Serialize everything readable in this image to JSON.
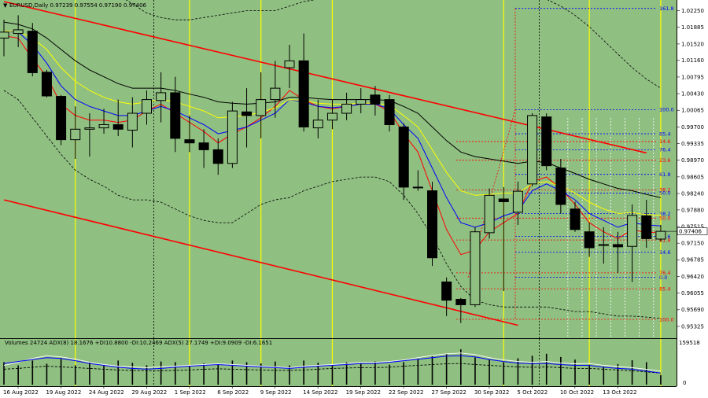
{
  "window": {
    "main_header": "EURUSD,Daily  0.97239 0.97554 0.97190 0.97406",
    "indicator_header": "Volumes 24724  ADX(8) 18.1676 +DI10.8800 -DI:10.2469  ADX(5) 27.1749 +DI:9.0909 -DI:6.1651",
    "current_price_label": "0.97406",
    "volume_axis_top": "159518",
    "volume_axis_bottom": "0"
  },
  "colors": {
    "background": "#8fbf81",
    "bull_candle": "#8fbf81",
    "bear_candle": "#000000",
    "channel": "#ff0000",
    "vertical_markers": "#ffff00",
    "fib_blue": "#0000ff",
    "fib_red": "#ff0000",
    "ma_fast": "#ff0000",
    "ma_mid": "#0000ff",
    "ma_slow": "#ffff00",
    "ma_long": "#000000"
  },
  "chart_data": {
    "type": "candlestick",
    "symbol": "EURUSD",
    "timeframe": "Daily",
    "y_range": [
      0.951,
      1.0245
    ],
    "y_ticks": [
      "1.02250",
      "1.01885",
      "1.01520",
      "1.01160",
      "1.00795",
      "1.00430",
      "1.00065",
      "0.99700",
      "0.99335",
      "0.98970",
      "0.98605",
      "0.98240",
      "0.97880",
      "0.97515",
      "0.97150",
      "0.96785",
      "0.96420",
      "0.96055",
      "0.95690",
      "0.95325"
    ],
    "x_labels": [
      "16 Aug 2022",
      "19 Aug 2022",
      "24 Aug 2022",
      "29 Aug 2022",
      "1 Sep 2022",
      "6 Sep 2022",
      "9 Sep 2022",
      "14 Sep 2022",
      "19 Sep 2022",
      "22 Sep 2022",
      "27 Sep 2022",
      "30 Sep 2022",
      "5 Oct 2022",
      "10 Oct 2022",
      "13 Oct 2022"
    ],
    "candles": [
      {
        "o": 1.0165,
        "h": 1.0205,
        "l": 1.0125,
        "c": 1.0178
      },
      {
        "o": 1.0175,
        "h": 1.0215,
        "l": 1.0145,
        "c": 1.0183
      },
      {
        "o": 1.018,
        "h": 1.0198,
        "l": 1.0081,
        "c": 1.0089
      },
      {
        "o": 1.009,
        "h": 1.0095,
        "l": 1.0035,
        "c": 1.0038
      },
      {
        "o": 1.0037,
        "h": 1.004,
        "l": 0.993,
        "c": 0.9942
      },
      {
        "o": 0.9942,
        "h": 1.0015,
        "l": 0.99,
        "c": 0.9965
      },
      {
        "o": 0.9965,
        "h": 1.0,
        "l": 0.9905,
        "c": 0.9968
      },
      {
        "o": 0.9968,
        "h": 1.001,
        "l": 0.9955,
        "c": 0.9975
      },
      {
        "o": 0.9975,
        "h": 1.003,
        "l": 0.995,
        "c": 0.9965
      },
      {
        "o": 0.9963,
        "h": 1.0035,
        "l": 0.9925,
        "c": 1.0
      },
      {
        "o": 1.0,
        "h": 1.005,
        "l": 0.9975,
        "c": 1.003
      },
      {
        "o": 1.0028,
        "h": 1.009,
        "l": 0.998,
        "c": 1.0045
      },
      {
        "o": 1.0045,
        "h": 1.008,
        "l": 0.9915,
        "c": 0.9945
      },
      {
        "o": 0.9942,
        "h": 0.9995,
        "l": 0.9915,
        "c": 0.9935
      },
      {
        "o": 0.9935,
        "h": 0.9965,
        "l": 0.988,
        "c": 0.992
      },
      {
        "o": 0.992,
        "h": 0.9945,
        "l": 0.9865,
        "c": 0.989
      },
      {
        "o": 0.989,
        "h": 1.0025,
        "l": 0.988,
        "c": 1.0005
      },
      {
        "o": 1.0003,
        "h": 1.0055,
        "l": 0.9925,
        "c": 0.9995
      },
      {
        "o": 0.9995,
        "h": 1.009,
        "l": 0.9945,
        "c": 1.003
      },
      {
        "o": 1.003,
        "h": 1.0115,
        "l": 0.999,
        "c": 1.0055
      },
      {
        "o": 1.01,
        "h": 1.015,
        "l": 1.0055,
        "c": 1.0115
      },
      {
        "o": 1.0115,
        "h": 1.0175,
        "l": 0.996,
        "c": 0.997
      },
      {
        "o": 0.9968,
        "h": 1.003,
        "l": 0.9945,
        "c": 0.9985
      },
      {
        "o": 0.9985,
        "h": 1.003,
        "l": 0.9965,
        "c": 1.0
      },
      {
        "o": 1.0,
        "h": 1.0045,
        "l": 0.9985,
        "c": 1.002
      },
      {
        "o": 1.002,
        "h": 1.0055,
        "l": 1.0,
        "c": 1.003
      },
      {
        "o": 1.004,
        "h": 1.006,
        "l": 0.9995,
        "c": 1.002
      },
      {
        "o": 1.003,
        "h": 1.004,
        "l": 0.996,
        "c": 0.9975
      },
      {
        "o": 0.997,
        "h": 0.9978,
        "l": 0.981,
        "c": 0.9838
      },
      {
        "o": 0.9838,
        "h": 0.9875,
        "l": 0.983,
        "c": 0.9838
      },
      {
        "o": 0.983,
        "h": 0.985,
        "l": 0.9665,
        "c": 0.9683
      },
      {
        "o": 0.963,
        "h": 0.964,
        "l": 0.9555,
        "c": 0.959
      },
      {
        "o": 0.9592,
        "h": 0.9595,
        "l": 0.954,
        "c": 0.958
      },
      {
        "o": 0.958,
        "h": 0.975,
        "l": 0.9575,
        "c": 0.974
      },
      {
        "o": 0.9738,
        "h": 0.9835,
        "l": 0.9725,
        "c": 0.982
      },
      {
        "o": 0.9812,
        "h": 0.9838,
        "l": 0.961,
        "c": 0.9806
      },
      {
        "o": 0.9783,
        "h": 0.985,
        "l": 0.9755,
        "c": 0.9829
      },
      {
        "o": 0.9845,
        "h": 1.0,
        "l": 0.984,
        "c": 0.9995
      },
      {
        "o": 0.9992,
        "h": 1.0,
        "l": 0.9875,
        "c": 0.9885
      },
      {
        "o": 0.988,
        "h": 0.99,
        "l": 0.978,
        "c": 0.98
      },
      {
        "o": 0.979,
        "h": 0.9806,
        "l": 0.974,
        "c": 0.9745
      },
      {
        "o": 0.974,
        "h": 0.976,
        "l": 0.9685,
        "c": 0.9705
      },
      {
        "o": 0.971,
        "h": 0.975,
        "l": 0.967,
        "c": 0.9712
      },
      {
        "o": 0.9712,
        "h": 0.974,
        "l": 0.965,
        "c": 0.9707
      },
      {
        "o": 0.9708,
        "h": 0.98,
        "l": 0.963,
        "c": 0.9776
      },
      {
        "o": 0.9775,
        "h": 0.981,
        "l": 0.9705,
        "c": 0.9725
      },
      {
        "o": 0.9724,
        "h": 0.9755,
        "l": 0.9719,
        "c": 0.9741
      }
    ],
    "moving_averages": [
      {
        "color": "#ff0000",
        "values": [
          1.017,
          1.0165,
          1.012,
          1.008,
          1.002,
          0.9995,
          0.9985,
          0.9985,
          0.998,
          0.9985,
          1.0005,
          1.002,
          1.0,
          0.998,
          0.996,
          0.9935,
          0.9955,
          0.997,
          0.999,
          1.0015,
          1.005,
          1.003,
          1.0015,
          1.001,
          1.0015,
          1.002,
          1.002,
          1.0005,
          0.9955,
          0.9915,
          0.983,
          0.9745,
          0.969,
          0.97,
          0.974,
          0.976,
          0.978,
          0.985,
          0.986,
          0.9835,
          0.98,
          0.976,
          0.974,
          0.9725,
          0.9745,
          0.9738,
          0.974
        ]
      },
      {
        "color": "#0000ff",
        "values": [
          1.018,
          1.0178,
          1.015,
          1.011,
          1.006,
          1.003,
          1.0015,
          1.0005,
          0.9995,
          0.9995,
          1.0005,
          1.0015,
          1.0005,
          0.999,
          0.9975,
          0.9955,
          0.9962,
          0.997,
          0.9985,
          1.0,
          1.003,
          1.0025,
          1.0015,
          1.0012,
          1.0015,
          1.002,
          1.002,
          1.001,
          0.9975,
          0.9945,
          0.988,
          0.9815,
          0.976,
          0.975,
          0.976,
          0.9775,
          0.9785,
          0.983,
          0.9845,
          0.983,
          0.981,
          0.978,
          0.9765,
          0.975,
          0.976,
          0.9755,
          0.9753
        ]
      },
      {
        "color": "#ffff00",
        "values": [
          1.018,
          1.018,
          1.0165,
          1.014,
          1.01,
          1.007,
          1.005,
          1.0035,
          1.0025,
          1.002,
          1.0025,
          1.003,
          1.0025,
          1.0015,
          1.0005,
          0.999,
          0.9992,
          0.9995,
          1.0002,
          1.0012,
          1.003,
          1.0028,
          1.0022,
          1.002,
          1.002,
          1.0022,
          1.0022,
          1.0018,
          0.9995,
          0.997,
          0.992,
          0.987,
          0.983,
          0.982,
          0.9822,
          0.9825,
          0.9825,
          0.9845,
          0.985,
          0.984,
          0.9825,
          0.9805,
          0.979,
          0.978,
          0.9782,
          0.9778,
          0.9776
        ]
      },
      {
        "color": "#000000",
        "values": [
          1.02,
          1.0195,
          1.0185,
          1.0165,
          1.014,
          1.0115,
          1.0095,
          1.008,
          1.0065,
          1.0055,
          1.0055,
          1.0055,
          1.005,
          1.0042,
          1.0035,
          1.0025,
          1.0022,
          1.002,
          1.0022,
          1.0025,
          1.0035,
          1.0035,
          1.0032,
          1.003,
          1.003,
          1.003,
          1.003,
          1.0028,
          1.0015,
          1.0,
          0.997,
          0.994,
          0.9915,
          0.9905,
          0.99,
          0.9895,
          0.989,
          0.9895,
          0.9892,
          0.988,
          0.9868,
          0.9855,
          0.9845,
          0.9835,
          0.983,
          0.9822,
          0.9815
        ]
      }
    ],
    "bollinger_upper": [
      1.03,
      1.031,
      1.032,
      1.033,
      1.033,
      1.032,
      1.03,
      1.028,
      1.026,
      1.024,
      1.022,
      1.021,
      1.0205,
      1.0205,
      1.021,
      1.0215,
      1.022,
      1.0225,
      1.0225,
      1.0225,
      1.0235,
      1.0245,
      1.025,
      1.025,
      1.025,
      1.025,
      1.025,
      1.025,
      1.025,
      1.025,
      1.025,
      1.025,
      1.025,
      1.025,
      1.025,
      1.025,
      1.025,
      1.025,
      1.025,
      1.0235,
      1.0215,
      1.019,
      1.016,
      1.013,
      1.01,
      1.0075,
      1.0055
    ],
    "bollinger_lower": [
      1.005,
      1.003,
      0.999,
      0.995,
      0.991,
      0.9875,
      0.9855,
      0.984,
      0.982,
      0.981,
      0.981,
      0.9805,
      0.979,
      0.9775,
      0.9765,
      0.976,
      0.976,
      0.978,
      0.98,
      0.981,
      0.9815,
      0.983,
      0.984,
      0.985,
      0.9855,
      0.986,
      0.986,
      0.985,
      0.982,
      0.978,
      0.973,
      0.967,
      0.962,
      0.959,
      0.958,
      0.9575,
      0.9575,
      0.9575,
      0.9575,
      0.957,
      0.9565,
      0.9565,
      0.956,
      0.9555,
      0.9555,
      0.9553,
      0.955
    ],
    "channel_lines": [
      {
        "from": [
          0,
          1.0245
        ],
        "to": [
          45,
          0.9913
        ]
      },
      {
        "from": [
          0,
          0.981
        ],
        "to": [
          36,
          0.9535
        ]
      }
    ],
    "vertical_markers": {
      "yellow": [
        5,
        13,
        18,
        23,
        35,
        41,
        46
      ],
      "black_dotted": [
        10,
        37
      ],
      "white_dotted": [
        39,
        40,
        41,
        42,
        43,
        44,
        45
      ]
    },
    "fib_levels": [
      {
        "label": "161.8",
        "value": 1.023,
        "color": "#0000ff"
      },
      {
        "label": "100.0",
        "value": 1.0008,
        "color": "#0000ff"
      },
      {
        "label": "85.4",
        "value": 0.9955,
        "color": "#0000ff"
      },
      {
        "label": "14.6",
        "value": 0.9938,
        "color": "#ff0000"
      },
      {
        "label": "76.4",
        "value": 0.992,
        "color": "#0000ff"
      },
      {
        "label": "23.6",
        "value": 0.9897,
        "color": "#ff0000"
      },
      {
        "label": "61.8",
        "value": 0.9866,
        "color": "#0000ff"
      },
      {
        "label": "38.2",
        "value": 0.9832,
        "color": "#ff0000"
      },
      {
        "label": "50.0",
        "value": 0.9825,
        "color": "#0000ff"
      },
      {
        "label": "38.2",
        "value": 0.978,
        "color": "#0000ff"
      },
      {
        "label": "50.0",
        "value": 0.977,
        "color": "#ff0000"
      },
      {
        "label": "23.6",
        "value": 0.973,
        "color": "#0000ff"
      },
      {
        "label": "61.8",
        "value": 0.9722,
        "color": "#ff0000"
      },
      {
        "label": "14.6",
        "value": 0.9695,
        "color": "#0000ff"
      },
      {
        "label": "76.4",
        "value": 0.965,
        "color": "#ff0000"
      },
      {
        "label": "0.0",
        "value": 0.964,
        "color": "#0000ff"
      },
      {
        "label": "85.4",
        "value": 0.9615,
        "color": "#ff0000"
      },
      {
        "label": "100.0",
        "value": 0.9548,
        "color": "#ff0000"
      }
    ],
    "indicator": {
      "volumes": [
        70,
        60,
        75,
        65,
        80,
        60,
        70,
        62,
        75,
        68,
        60,
        72,
        70,
        58,
        66,
        62,
        75,
        70,
        66,
        72,
        60,
        75,
        68,
        62,
        70,
        66,
        72,
        62,
        70,
        80,
        88,
        95,
        110,
        85,
        78,
        70,
        82,
        90,
        96,
        86,
        78,
        62,
        56,
        64,
        76,
        70,
        30
      ],
      "adx_line": [
        0.55,
        0.6,
        0.65,
        0.7,
        0.68,
        0.62,
        0.55,
        0.5,
        0.45,
        0.42,
        0.4,
        0.42,
        0.45,
        0.48,
        0.5,
        0.52,
        0.5,
        0.48,
        0.46,
        0.44,
        0.42,
        0.45,
        0.48,
        0.5,
        0.52,
        0.55,
        0.55,
        0.58,
        0.62,
        0.66,
        0.7,
        0.74,
        0.75,
        0.72,
        0.65,
        0.6,
        0.56,
        0.54,
        0.55,
        0.52,
        0.5,
        0.5,
        0.45,
        0.42,
        0.4,
        0.35,
        0.3
      ],
      "plus_di_line": [
        0.5,
        0.58,
        0.68,
        0.75,
        0.72,
        0.66,
        0.58,
        0.52,
        0.48,
        0.46,
        0.44,
        0.46,
        0.48,
        0.5,
        0.52,
        0.54,
        0.52,
        0.5,
        0.48,
        0.46,
        0.44,
        0.48,
        0.5,
        0.52,
        0.55,
        0.58,
        0.58,
        0.6,
        0.64,
        0.7,
        0.76,
        0.8,
        0.82,
        0.78,
        0.7,
        0.64,
        0.6,
        0.58,
        0.6,
        0.56,
        0.54,
        0.55,
        0.5,
        0.47,
        0.44,
        0.4,
        0.35
      ],
      "minus_di_line": [
        0.4,
        0.42,
        0.45,
        0.48,
        0.46,
        0.44,
        0.42,
        0.4,
        0.38,
        0.37,
        0.36,
        0.36,
        0.37,
        0.38,
        0.4,
        0.41,
        0.4,
        0.39,
        0.38,
        0.37,
        0.37,
        0.38,
        0.4,
        0.42,
        0.43,
        0.44,
        0.44,
        0.45,
        0.48,
        0.5,
        0.52,
        0.54,
        0.55,
        0.52,
        0.5,
        0.48,
        0.46,
        0.45,
        0.46,
        0.44,
        0.42,
        0.42,
        0.4,
        0.38,
        0.36,
        0.33,
        0.3
      ]
    }
  }
}
